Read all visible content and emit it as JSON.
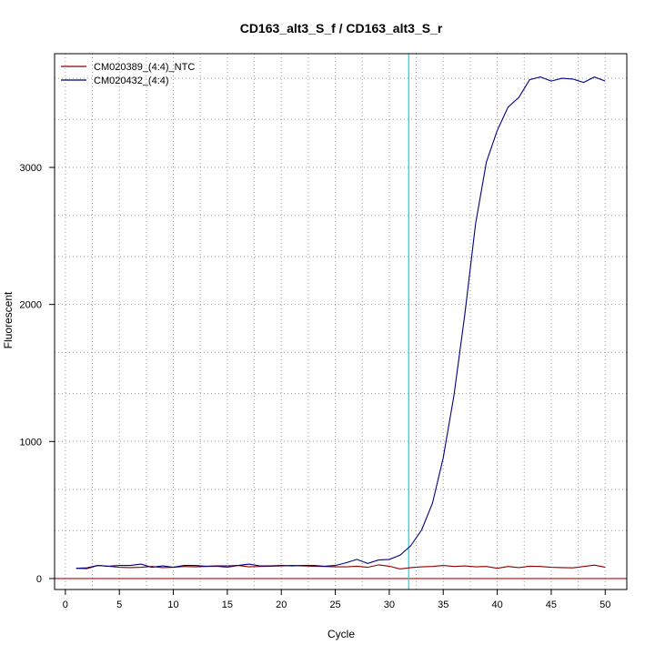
{
  "chart_data": {
    "type": "line",
    "title": "CD163_alt3_S_f / CD163_alt3_S_r",
    "xlabel": "Cycle",
    "ylabel": "Fluorescent",
    "xlim": [
      -1,
      52
    ],
    "ylim": [
      -80,
      3830
    ],
    "x_ticks": [
      0,
      5,
      10,
      15,
      20,
      25,
      30,
      35,
      40,
      45,
      50
    ],
    "y_ticks": [
      0,
      1000,
      2000,
      3000
    ],
    "grid": true,
    "grid_x_minor": [
      2.5,
      7.5,
      12.5,
      17.5,
      22.5,
      27.5,
      32.5,
      37.5,
      42.5,
      47.5
    ],
    "grid_y_minor": [
      350,
      650,
      1350,
      1650,
      2350,
      2650,
      3350,
      3650
    ],
    "threshold_cycle": 31.8,
    "threshold_color": "#00e5ee",
    "baseline_color": "#cc0000",
    "legend_position": "top-left",
    "series": [
      {
        "name": "CM020389_(4:4)_NTC",
        "color": "#8b0000",
        "x": [
          1,
          2,
          3,
          4,
          5,
          6,
          7,
          8,
          9,
          10,
          11,
          12,
          13,
          14,
          15,
          16,
          17,
          18,
          19,
          20,
          21,
          22,
          23,
          24,
          25,
          26,
          27,
          28,
          29,
          30,
          31,
          32,
          33,
          34,
          35,
          36,
          37,
          38,
          39,
          40,
          41,
          42,
          43,
          44,
          45,
          46,
          47,
          48,
          49,
          50
        ],
        "values": [
          75,
          72,
          95,
          90,
          82,
          80,
          82,
          88,
          80,
          82,
          88,
          85,
          88,
          90,
          82,
          95,
          85,
          88,
          90,
          92,
          95,
          92,
          90,
          88,
          85,
          85,
          90,
          82,
          100,
          90,
          70,
          80,
          85,
          88,
          95,
          88,
          92,
          85,
          88,
          75,
          88,
          80,
          90,
          88,
          82,
          80,
          78,
          88,
          98,
          82
        ]
      },
      {
        "name": "CM020432_(4:4)",
        "color": "#000080",
        "x": [
          1,
          2,
          3,
          4,
          5,
          6,
          7,
          8,
          9,
          10,
          11,
          12,
          13,
          14,
          15,
          16,
          17,
          18,
          19,
          20,
          21,
          22,
          23,
          24,
          25,
          26,
          27,
          28,
          29,
          30,
          31,
          32,
          33,
          34,
          35,
          36,
          37,
          38,
          39,
          40,
          41,
          42,
          43,
          44,
          45,
          46,
          47,
          48,
          49,
          50
        ],
        "values": [
          75,
          78,
          95,
          90,
          95,
          95,
          105,
          82,
          92,
          82,
          95,
          95,
          90,
          92,
          92,
          95,
          105,
          92,
          92,
          95,
          92,
          95,
          95,
          90,
          95,
          115,
          140,
          110,
          135,
          140,
          170,
          240,
          355,
          550,
          880,
          1340,
          1930,
          2590,
          3040,
          3270,
          3440,
          3510,
          3640,
          3660,
          3630,
          3650,
          3645,
          3620,
          3660,
          3630
        ]
      }
    ]
  }
}
